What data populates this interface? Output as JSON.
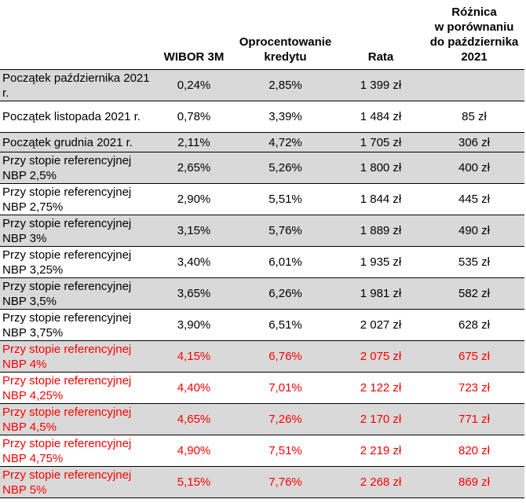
{
  "table": {
    "headers": [
      "",
      "WIBOR 3M",
      "Oprocentowanie kredytu",
      "Rata",
      "Różnica\nw porównaniu\ndo października\n2021"
    ],
    "rows": [
      [
        "Początek października 2021 r.",
        "0,24%",
        "2,85%",
        "1 399 zł"
      ],
      [
        "Początek listopada 2021 r.",
        "0,78%",
        "3,39%",
        "1 484 zł",
        "85 zł"
      ],
      [
        "Początek grudnia 2021 r.",
        "2,11%",
        "4,72%",
        "1 705 zł",
        "306 zł"
      ],
      [
        "Przy stopie referencyjnej NBP 2,5%",
        "2,65%",
        "5,26%",
        "1 800 zł",
        "400 zł"
      ],
      [
        "Przy stopie referencyjnej NBP 2,75%",
        "2,90%",
        "5,51%",
        "1 844 zł",
        "445 zł"
      ],
      [
        "Przy stopie referencyjnej NBP 3%",
        "3,15%",
        "5,76%",
        "1 889 zł",
        "490 zł"
      ],
      [
        "Przy stopie referencyjnej NBP 3,25%",
        "3,40%",
        "6,01%",
        "1 935 zł",
        "535 zł"
      ],
      [
        "Przy stopie referencyjnej NBP 3,5%",
        "3,65%",
        "6,26%",
        "1 981 zł",
        "582 zł"
      ],
      [
        "Przy stopie referencyjnej NBP 3,75%",
        "3,90%",
        "6,51%",
        "2 027 zł",
        "628 zł"
      ],
      [
        "Przy stopie referencyjnej NBP 4%",
        "4,15%",
        "6,76%",
        "2 075 zł",
        "675 zł"
      ],
      [
        "Przy stopie referencyjnej NBP 4,25%",
        "4,40%",
        "7,01%",
        "2 122 zł",
        "723 zł"
      ],
      [
        "Przy stopie referencyjnej NBP 4,5%",
        "4,65%",
        "7,26%",
        "2 170 zł",
        "771 zł"
      ],
      [
        "Przy stopie referencyjnej NBP 4,75%",
        "4,90%",
        "7,51%",
        "2 219 zł",
        "820 zł"
      ],
      [
        "Przy stopie referencyjnej NBP 5%",
        "5,15%",
        "7,76%",
        "2 268 zł",
        "869 zł"
      ]
    ]
  }
}
